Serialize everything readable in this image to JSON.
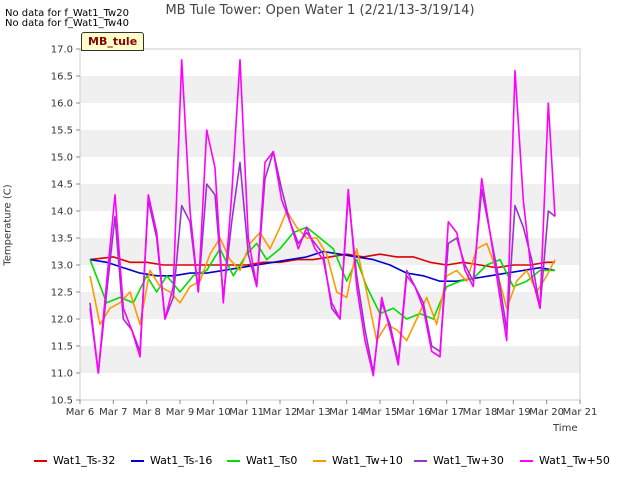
{
  "no_data_messages": [
    "No data for f_Wat1_Tw20",
    "No data for f_Wat1_Tw40"
  ],
  "site_badge": "MB_tule",
  "chart_data": {
    "type": "line",
    "title": "MB Tule Tower: Open Water 1 (2/21/13-3/19/14)",
    "xlabel": "Time",
    "ylabel": "Temperature (C)",
    "x_tick_labels": [
      "Mar 6",
      "Mar 7",
      "Mar 8",
      "Mar 9",
      "Mar 10",
      "Mar 11",
      "Mar 12",
      "Mar 13",
      "Mar 14",
      "Mar 15",
      "Mar 16",
      "Mar 17",
      "Mar 18",
      "Mar 19",
      "Mar 20",
      "Mar 21"
    ],
    "x_tick_days": [
      6,
      7,
      8,
      9,
      10,
      11,
      12,
      13,
      14,
      15,
      16,
      17,
      18,
      19,
      20,
      21
    ],
    "xlim": [
      6,
      21
    ],
    "ylim": [
      10.5,
      17.0
    ],
    "y_ticks": [
      "10.5",
      "11.0",
      "11.5",
      "12.0",
      "12.5",
      "13.0",
      "13.5",
      "14.0",
      "14.5",
      "15.0",
      "15.5",
      "16.0",
      "16.5",
      "17.0"
    ],
    "grid": "alternating horizontal bands",
    "legend_position": "bottom",
    "series": [
      {
        "name": "Wat1_Ts-32",
        "color": "#dd0000",
        "x": [
          6.3,
          7,
          7.5,
          8,
          8.5,
          9,
          9.5,
          10,
          10.5,
          11,
          11.5,
          12,
          12.5,
          13,
          13.5,
          14,
          14.5,
          15,
          15.5,
          16,
          16.5,
          17,
          17.5,
          18,
          18.5,
          19,
          19.5,
          20,
          20.25
        ],
        "y": [
          13.1,
          13.15,
          13.05,
          13.05,
          13.0,
          13.0,
          13.0,
          13.0,
          13.0,
          13.0,
          13.05,
          13.05,
          13.1,
          13.1,
          13.15,
          13.2,
          13.15,
          13.2,
          13.15,
          13.15,
          13.05,
          13.0,
          13.05,
          13.0,
          12.95,
          13.0,
          13.0,
          13.05,
          13.05
        ]
      },
      {
        "name": "Wat1_Ts-16",
        "color": "#0000cc",
        "x": [
          6.3,
          6.8,
          7.3,
          7.8,
          8.3,
          8.8,
          9.3,
          9.8,
          10.3,
          10.8,
          11.3,
          11.8,
          12.3,
          12.8,
          13.3,
          13.8,
          14.3,
          14.8,
          15.3,
          15.8,
          16.3,
          16.8,
          17.3,
          17.8,
          18.3,
          18.8,
          19.3,
          19.8,
          20.25
        ],
        "y": [
          13.1,
          13.05,
          12.95,
          12.85,
          12.8,
          12.8,
          12.85,
          12.85,
          12.9,
          12.95,
          13.0,
          13.05,
          13.1,
          13.15,
          13.25,
          13.2,
          13.15,
          13.1,
          13.0,
          12.85,
          12.8,
          12.7,
          12.7,
          12.75,
          12.8,
          12.85,
          12.9,
          12.95,
          12.9
        ]
      },
      {
        "name": "Wat1_Ts0",
        "color": "#00dd00",
        "x": [
          6.3,
          6.8,
          7.2,
          7.6,
          8.0,
          8.3,
          8.6,
          9.0,
          9.4,
          9.8,
          10.2,
          10.6,
          11.0,
          11.3,
          11.6,
          12.0,
          12.4,
          12.8,
          13.2,
          13.6,
          14.0,
          14.3,
          14.6,
          15.0,
          15.4,
          15.8,
          16.2,
          16.6,
          17.0,
          17.4,
          17.8,
          18.2,
          18.6,
          19.0,
          19.4,
          19.8,
          20.25
        ],
        "y": [
          13.1,
          12.3,
          12.4,
          12.3,
          12.8,
          12.5,
          12.8,
          12.5,
          12.8,
          12.9,
          13.3,
          12.8,
          13.2,
          13.4,
          13.1,
          13.3,
          13.6,
          13.7,
          13.5,
          13.3,
          12.7,
          13.1,
          12.6,
          12.1,
          12.2,
          12.0,
          12.1,
          12.0,
          12.6,
          12.7,
          12.75,
          13.0,
          13.1,
          12.6,
          12.7,
          12.9,
          12.9
        ]
      },
      {
        "name": "Wat1_Tw+10",
        "color": "#ff9900",
        "x": [
          6.3,
          6.6,
          6.9,
          7.2,
          7.5,
          7.8,
          8.1,
          8.4,
          8.7,
          9.0,
          9.3,
          9.6,
          9.9,
          10.2,
          10.5,
          10.8,
          11.1,
          11.4,
          11.7,
          12.0,
          12.2,
          12.5,
          12.8,
          13.1,
          13.4,
          13.7,
          14.0,
          14.3,
          14.6,
          14.9,
          15.2,
          15.5,
          15.8,
          16.1,
          16.4,
          16.7,
          17.0,
          17.3,
          17.6,
          17.9,
          18.2,
          18.5,
          18.8,
          19.1,
          19.4,
          19.7,
          20.0,
          20.25
        ],
        "y": [
          12.8,
          11.9,
          12.2,
          12.3,
          12.5,
          11.9,
          12.9,
          12.6,
          12.5,
          12.3,
          12.6,
          12.7,
          13.2,
          13.5,
          13.1,
          12.9,
          13.4,
          13.6,
          13.3,
          13.7,
          14.0,
          13.7,
          13.5,
          13.5,
          13.2,
          12.5,
          12.4,
          13.3,
          12.5,
          11.6,
          11.9,
          11.8,
          11.6,
          12.0,
          12.4,
          11.9,
          12.8,
          12.9,
          12.7,
          13.3,
          13.4,
          12.9,
          12.2,
          12.7,
          12.9,
          12.5,
          12.8,
          13.1
        ]
      },
      {
        "name": "Wat1_Tw+30",
        "color": "#9933cc",
        "x": [
          6.3,
          6.55,
          6.8,
          7.05,
          7.3,
          7.55,
          7.8,
          8.05,
          8.3,
          8.55,
          8.8,
          9.05,
          9.3,
          9.55,
          9.8,
          10.05,
          10.3,
          10.55,
          10.8,
          11.05,
          11.3,
          11.55,
          11.8,
          12.05,
          12.3,
          12.55,
          12.8,
          13.05,
          13.3,
          13.55,
          13.8,
          14.05,
          14.3,
          14.55,
          14.8,
          15.05,
          15.3,
          15.55,
          15.8,
          16.05,
          16.3,
          16.55,
          16.8,
          17.05,
          17.3,
          17.55,
          17.8,
          18.05,
          18.3,
          18.55,
          18.8,
          19.05,
          19.3,
          19.55,
          19.8,
          20.05,
          20.25
        ],
        "y": [
          12.3,
          11.0,
          12.5,
          13.9,
          12.0,
          11.8,
          11.4,
          14.2,
          13.5,
          12.0,
          12.4,
          14.1,
          13.8,
          12.5,
          14.5,
          14.3,
          12.4,
          13.8,
          14.9,
          13.2,
          12.6,
          14.6,
          15.1,
          14.4,
          13.8,
          13.4,
          13.6,
          13.4,
          13.2,
          12.2,
          12.0,
          14.3,
          12.8,
          11.8,
          11.0,
          12.3,
          11.9,
          11.2,
          12.9,
          12.6,
          12.3,
          11.5,
          11.4,
          13.4,
          13.5,
          13.0,
          12.7,
          14.4,
          13.6,
          12.8,
          11.8,
          14.1,
          13.7,
          13.1,
          12.2,
          14.0,
          13.9
        ]
      },
      {
        "name": "Wat1_Tw+50",
        "color": "#ff00ff",
        "x": [
          6.3,
          6.55,
          6.8,
          7.05,
          7.3,
          7.55,
          7.8,
          8.05,
          8.3,
          8.55,
          8.8,
          9.05,
          9.3,
          9.55,
          9.8,
          10.05,
          10.3,
          10.55,
          10.8,
          11.05,
          11.3,
          11.55,
          11.8,
          12.05,
          12.3,
          12.55,
          12.8,
          13.05,
          13.3,
          13.55,
          13.8,
          14.05,
          14.3,
          14.55,
          14.8,
          15.05,
          15.3,
          15.55,
          15.8,
          16.05,
          16.3,
          16.55,
          16.8,
          17.05,
          17.3,
          17.55,
          17.8,
          18.05,
          18.3,
          18.55,
          18.8,
          19.05,
          19.3,
          19.55,
          19.8,
          20.05,
          20.25
        ],
        "y": [
          12.2,
          11.0,
          12.7,
          14.3,
          12.2,
          11.8,
          11.3,
          14.3,
          13.6,
          12.0,
          12.6,
          16.8,
          14.0,
          12.5,
          15.5,
          14.8,
          12.3,
          14.3,
          16.8,
          13.5,
          12.6,
          14.9,
          15.1,
          14.2,
          13.8,
          13.3,
          13.7,
          13.3,
          13.1,
          12.3,
          12.0,
          14.4,
          12.6,
          11.6,
          10.95,
          12.4,
          11.8,
          11.15,
          12.8,
          12.6,
          12.2,
          11.4,
          11.3,
          13.8,
          13.6,
          12.9,
          12.6,
          14.6,
          13.6,
          12.6,
          11.6,
          16.6,
          14.2,
          12.8,
          12.2,
          16.0,
          13.9
        ]
      }
    ]
  }
}
